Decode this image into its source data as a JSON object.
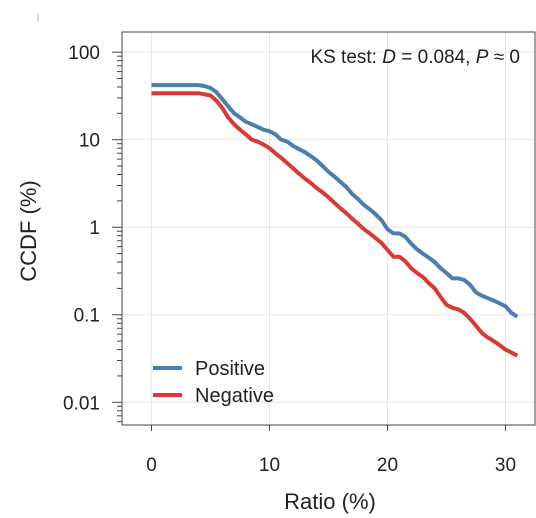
{
  "chart_data": {
    "type": "line",
    "title": "",
    "xlabel": "Ratio (%)",
    "ylabel": "CCDF (%)",
    "xlim": [
      -2.5,
      32.5
    ],
    "ylim": [
      0.0055,
      170
    ],
    "yscale": "log",
    "grid": true,
    "legend_position": "bottom-left",
    "x_ticks": [
      0,
      10,
      20,
      30
    ],
    "x_tick_labels": [
      "0",
      "10",
      "20",
      "30"
    ],
    "y_ticks": [
      100,
      10,
      1,
      0.1,
      0.01
    ],
    "y_tick_labels": [
      "100",
      "10",
      "1",
      "0.1",
      "0.01"
    ],
    "annotation": {
      "prefix": "KS test: ",
      "d_symbol": "D",
      "d_part": " = 0.084, ",
      "p_symbol": "P",
      "p_part": " ≈ 0"
    },
    "series": [
      {
        "name": "Positive",
        "color": "#4a7fb0",
        "points": [
          [
            0,
            42
          ],
          [
            1,
            42
          ],
          [
            2,
            42
          ],
          [
            3,
            42
          ],
          [
            4,
            42
          ],
          [
            4.5,
            41
          ],
          [
            5,
            39
          ],
          [
            5.5,
            35
          ],
          [
            6,
            29
          ],
          [
            6.5,
            24
          ],
          [
            7,
            20
          ],
          [
            7.5,
            18
          ],
          [
            8,
            16
          ],
          [
            8.5,
            15
          ],
          [
            9,
            14
          ],
          [
            9.5,
            13
          ],
          [
            10,
            12.5
          ],
          [
            10.5,
            11.5
          ],
          [
            11,
            10
          ],
          [
            11.5,
            9.5
          ],
          [
            12,
            8.5
          ],
          [
            12.5,
            7.8
          ],
          [
            13,
            7.2
          ],
          [
            13.5,
            6.5
          ],
          [
            14,
            5.8
          ],
          [
            14.5,
            5.0
          ],
          [
            15,
            4.3
          ],
          [
            15.5,
            3.8
          ],
          [
            16,
            3.3
          ],
          [
            16.5,
            2.9
          ],
          [
            17,
            2.4
          ],
          [
            17.5,
            2.1
          ],
          [
            18,
            1.8
          ],
          [
            18.5,
            1.6
          ],
          [
            19,
            1.4
          ],
          [
            19.5,
            1.2
          ],
          [
            20,
            0.95
          ],
          [
            20.5,
            0.85
          ],
          [
            21,
            0.85
          ],
          [
            21.5,
            0.78
          ],
          [
            22,
            0.65
          ],
          [
            22.5,
            0.56
          ],
          [
            23,
            0.5
          ],
          [
            23.5,
            0.45
          ],
          [
            24,
            0.4
          ],
          [
            24.5,
            0.34
          ],
          [
            25,
            0.3
          ],
          [
            25.5,
            0.26
          ],
          [
            26,
            0.26
          ],
          [
            26.5,
            0.25
          ],
          [
            27,
            0.22
          ],
          [
            27.5,
            0.18
          ],
          [
            28,
            0.165
          ],
          [
            28.5,
            0.155
          ],
          [
            29,
            0.145
          ],
          [
            29.5,
            0.135
          ],
          [
            30,
            0.125
          ],
          [
            30.5,
            0.105
          ],
          [
            31,
            0.095
          ]
        ]
      },
      {
        "name": "Negative",
        "color": "#d93a36",
        "points": [
          [
            0,
            34
          ],
          [
            1,
            34
          ],
          [
            2,
            34
          ],
          [
            3,
            34
          ],
          [
            4,
            34
          ],
          [
            4.5,
            33
          ],
          [
            5,
            32
          ],
          [
            5.5,
            28
          ],
          [
            6,
            23
          ],
          [
            6.5,
            18
          ],
          [
            7,
            15
          ],
          [
            7.5,
            13
          ],
          [
            8,
            11.5
          ],
          [
            8.5,
            10
          ],
          [
            9,
            9.5
          ],
          [
            9.5,
            8.8
          ],
          [
            10,
            8
          ],
          [
            10.5,
            7
          ],
          [
            11,
            6.2
          ],
          [
            11.5,
            5.4
          ],
          [
            12,
            4.7
          ],
          [
            12.5,
            4.1
          ],
          [
            13,
            3.6
          ],
          [
            13.5,
            3.2
          ],
          [
            14,
            2.8
          ],
          [
            14.5,
            2.5
          ],
          [
            15,
            2.2
          ],
          [
            15.5,
            1.9
          ],
          [
            16,
            1.65
          ],
          [
            16.5,
            1.45
          ],
          [
            17,
            1.25
          ],
          [
            17.5,
            1.1
          ],
          [
            18,
            0.95
          ],
          [
            18.5,
            0.85
          ],
          [
            19,
            0.75
          ],
          [
            19.5,
            0.66
          ],
          [
            20,
            0.55
          ],
          [
            20.5,
            0.46
          ],
          [
            21,
            0.46
          ],
          [
            21.5,
            0.41
          ],
          [
            22,
            0.34
          ],
          [
            22.5,
            0.3
          ],
          [
            23,
            0.27
          ],
          [
            23.5,
            0.23
          ],
          [
            24,
            0.2
          ],
          [
            24.5,
            0.16
          ],
          [
            25,
            0.13
          ],
          [
            25.5,
            0.12
          ],
          [
            26,
            0.115
          ],
          [
            26.5,
            0.105
          ],
          [
            27,
            0.09
          ],
          [
            27.5,
            0.075
          ],
          [
            28,
            0.062
          ],
          [
            28.5,
            0.055
          ],
          [
            29,
            0.05
          ],
          [
            29.5,
            0.045
          ],
          [
            30,
            0.04
          ],
          [
            30.5,
            0.037
          ],
          [
            31,
            0.034
          ]
        ]
      }
    ]
  }
}
